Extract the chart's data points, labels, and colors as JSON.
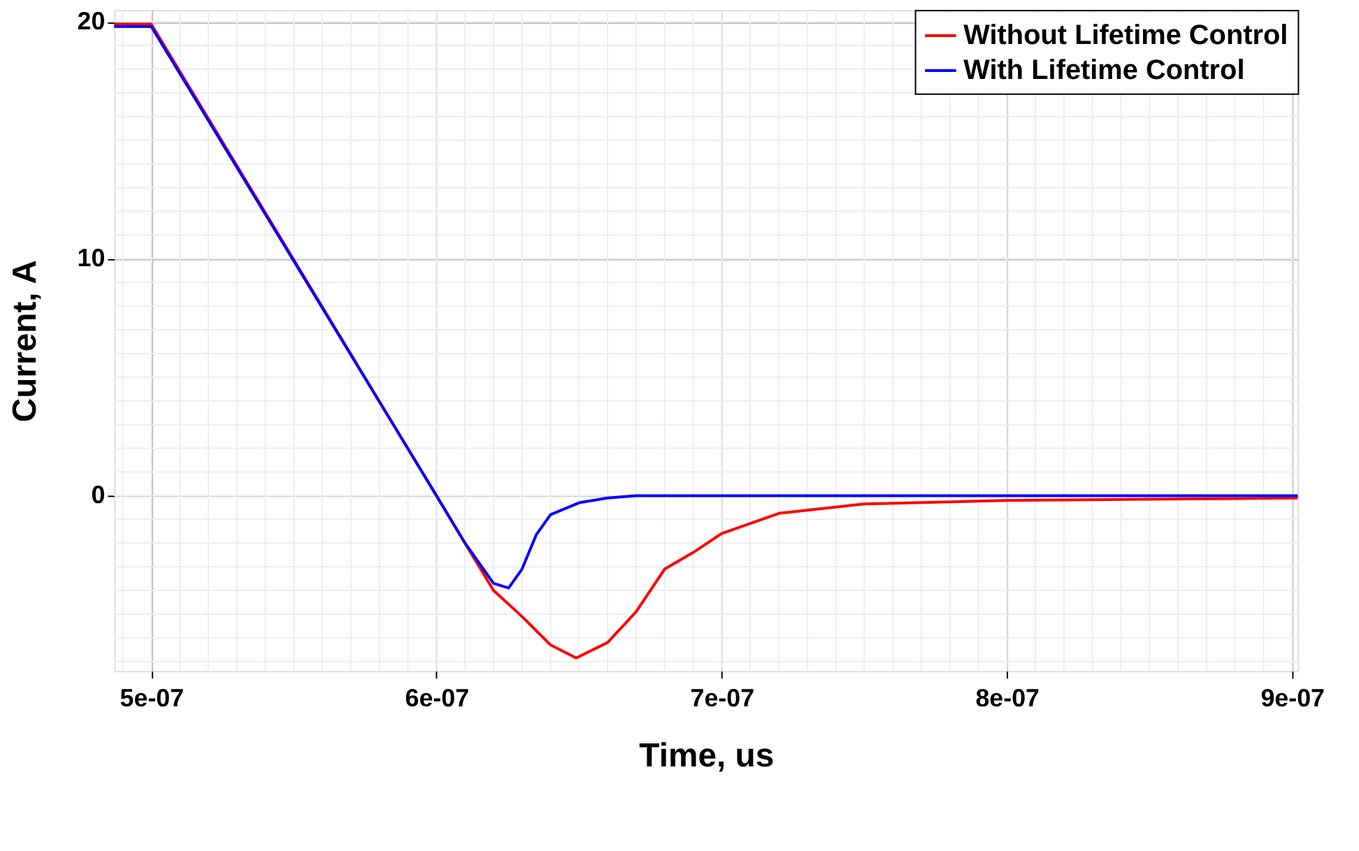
{
  "chart_data": {
    "type": "line",
    "xlabel": "Time, us",
    "ylabel": "Current, A",
    "xlim": [
      4.87e-07,
      9.02e-07
    ],
    "ylim": [
      -7.4,
      20.5
    ],
    "xticks": [
      {
        "value": 5e-07,
        "label": "5e-07"
      },
      {
        "value": 6e-07,
        "label": "6e-07"
      },
      {
        "value": 7e-07,
        "label": "7e-07"
      },
      {
        "value": 8e-07,
        "label": "8e-07"
      },
      {
        "value": 9e-07,
        "label": "9e-07"
      }
    ],
    "yticks": [
      0,
      10,
      20
    ],
    "grid": true,
    "legend": "top right",
    "line_style": "solid",
    "marker": "none",
    "series": [
      {
        "name": "Without Lifetime Control",
        "color": "#ff0000",
        "x": [
          4.87e-07,
          5e-07,
          6e-07,
          6.1e-07,
          6.2e-07,
          6.3e-07,
          6.4e-07,
          6.49e-07,
          6.6e-07,
          6.7e-07,
          6.8e-07,
          6.9e-07,
          7e-07,
          7.2e-07,
          7.5e-07,
          8e-07,
          8.5e-07,
          9.02e-07
        ],
        "values": [
          19.9,
          19.9,
          0,
          -2.0,
          -4.0,
          -5.1,
          -6.3,
          -6.85,
          -6.2,
          -4.9,
          -3.1,
          -2.4,
          -1.6,
          -0.75,
          -0.35,
          -0.2,
          -0.15,
          -0.1
        ]
      },
      {
        "name": "With Lifetime Control",
        "color": "#0000ff",
        "x": [
          4.87e-07,
          5e-07,
          6e-07,
          6.1e-07,
          6.2e-07,
          6.253e-07,
          6.3e-07,
          6.35e-07,
          6.4e-07,
          6.5e-07,
          6.6e-07,
          6.7e-07,
          9.02e-07
        ],
        "values": [
          19.8,
          19.8,
          0,
          -2.0,
          -3.7,
          -3.9,
          -3.1,
          -1.65,
          -0.8,
          -0.3,
          -0.1,
          0,
          0
        ]
      }
    ]
  }
}
